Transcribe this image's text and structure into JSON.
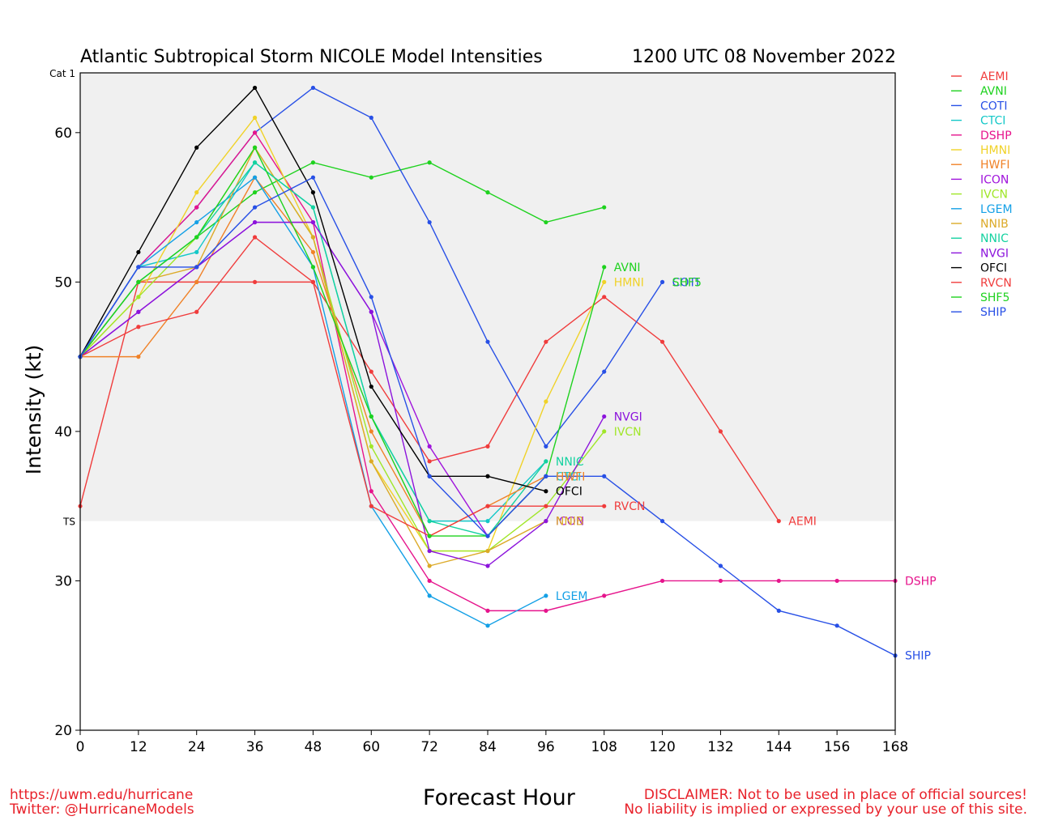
{
  "header": {
    "title": "Atlantic Subtropical Storm NICOLE Model Intensities",
    "timestamp": "1200 UTC 08 November 2022"
  },
  "footer": {
    "url": "https://uwm.edu/hurricane",
    "twitter": "Twitter: @HurricaneModels",
    "disclaimer1": "DISCLAIMER: Not to be used in place of official sources!",
    "disclaimer2": "No liability is implied or expressed by your use of this site."
  },
  "chart_data": {
    "type": "line",
    "title": "Atlantic Subtropical Storm NICOLE Model Intensities",
    "xlabel": "Forecast Hour",
    "ylabel": "Intensity (kt)",
    "xlim": [
      0,
      168
    ],
    "ylim": [
      20,
      64
    ],
    "xticks": [
      0,
      12,
      24,
      36,
      48,
      60,
      72,
      84,
      96,
      108,
      120,
      132,
      144,
      156,
      168
    ],
    "yticks": [
      20,
      30,
      40,
      50,
      60
    ],
    "bands": [
      {
        "label": "TS",
        "from": 34,
        "to": 64,
        "color": "#f0f0f0"
      },
      {
        "label": "Cat 1",
        "from": 64,
        "to": 68,
        "color": "#dcdcdc"
      }
    ],
    "series": [
      {
        "name": "AEMI",
        "color": "#f03c3c",
        "x": [
          0,
          12,
          24,
          36,
          48,
          60,
          72,
          84,
          96,
          108,
          120,
          132,
          144
        ],
        "values": [
          35,
          50,
          50,
          50,
          50,
          44,
          38,
          39,
          46,
          49,
          46,
          40,
          34
        ]
      },
      {
        "name": "AVNI",
        "color": "#1ed21e",
        "x": [
          0,
          12,
          24,
          36,
          48,
          60,
          72,
          84,
          96,
          108
        ],
        "values": [
          45,
          50,
          53,
          56,
          58,
          57,
          58,
          56,
          54,
          55
        ]
      },
      {
        "name": "COTI",
        "color": "#2850e6",
        "x": [
          0,
          12,
          24,
          36,
          48,
          60,
          72,
          84,
          96,
          108,
          120
        ],
        "values": [
          45,
          51,
          55,
          60,
          63,
          61,
          54,
          46,
          39,
          44,
          50
        ]
      },
      {
        "name": "CTCI",
        "color": "#14c8c8",
        "x": [
          0,
          12,
          24,
          36,
          48,
          60,
          72,
          84,
          96
        ],
        "values": [
          45,
          51,
          52,
          58,
          55,
          41,
          34,
          34,
          38
        ]
      },
      {
        "name": "DSHP",
        "color": "#e6148c",
        "x": [
          0,
          12,
          24,
          36,
          48,
          60,
          72,
          84,
          96,
          108,
          120,
          132,
          144,
          156,
          168
        ],
        "values": [
          45,
          51,
          55,
          60,
          54,
          36,
          30,
          28,
          28,
          29,
          30,
          30,
          30,
          30,
          30
        ]
      },
      {
        "name": "HMNI",
        "color": "#f0d228",
        "x": [
          0,
          12,
          24,
          36,
          48,
          60,
          72,
          84,
          96,
          108
        ],
        "values": [
          45,
          49,
          56,
          61,
          53,
          38,
          32,
          32,
          42,
          50
        ]
      },
      {
        "name": "HWFI",
        "color": "#f08228",
        "x": [
          0,
          12,
          24,
          36,
          48,
          60,
          72,
          84,
          96
        ],
        "values": [
          45,
          45,
          50,
          57,
          52,
          40,
          33,
          35,
          37
        ]
      },
      {
        "name": "ICON",
        "color": "#a014dc",
        "x": [
          0,
          12,
          24,
          36,
          48,
          60,
          72,
          84,
          96
        ],
        "values": [
          45,
          48,
          51,
          54,
          54,
          48,
          39,
          33,
          37
        ]
      },
      {
        "name": "IVCN",
        "color": "#a0e628",
        "x": [
          0,
          12,
          24,
          36,
          48,
          60,
          72,
          84,
          96,
          108
        ],
        "values": [
          45,
          49,
          53,
          59,
          53,
          39,
          32,
          32,
          35,
          40
        ]
      },
      {
        "name": "LGEM",
        "color": "#14a0e6",
        "x": [
          0,
          12,
          24,
          36,
          48,
          60,
          72,
          84,
          96
        ],
        "values": [
          45,
          51,
          54,
          57,
          51,
          35,
          29,
          27,
          29
        ]
      },
      {
        "name": "NNIB",
        "color": "#dcaa28",
        "x": [
          0,
          12,
          24,
          36,
          48,
          60,
          72,
          84,
          96
        ],
        "values": [
          45,
          50,
          51,
          59,
          53,
          38,
          31,
          32,
          34
        ]
      },
      {
        "name": "NNIC",
        "color": "#14d2a0",
        "x": [
          0,
          12,
          24,
          36,
          48,
          60,
          72,
          84,
          96
        ],
        "values": [
          45,
          50,
          53,
          58,
          55,
          41,
          34,
          33,
          38
        ]
      },
      {
        "name": "NVGI",
        "color": "#8c14dc",
        "x": [
          0,
          12,
          24,
          36,
          48,
          60,
          72,
          84,
          96,
          108
        ],
        "values": [
          45,
          48,
          51,
          54,
          54,
          48,
          32,
          31,
          34,
          41
        ]
      },
      {
        "name": "OFCI",
        "color": "#000000",
        "x": [
          0,
          12,
          24,
          36,
          48,
          60,
          72,
          84,
          96
        ],
        "values": [
          45,
          52,
          59,
          63,
          56,
          43,
          37,
          37,
          36
        ]
      },
      {
        "name": "RVCN",
        "color": "#f03c3c",
        "x": [
          0,
          12,
          24,
          36,
          48,
          60,
          72,
          84,
          96,
          108
        ],
        "values": [
          45,
          47,
          48,
          53,
          50,
          35,
          33,
          35,
          35,
          35
        ]
      },
      {
        "name": "SHF5",
        "color": "#1ed21e",
        "x": [
          0,
          12,
          24,
          36,
          48,
          60,
          72,
          84,
          96,
          108
        ],
        "values": [
          45,
          50,
          53,
          59,
          51,
          41,
          33,
          33,
          37,
          51
        ]
      },
      {
        "name": "SHIP",
        "color": "#2850e6",
        "x": [
          0,
          12,
          24,
          36,
          48,
          60,
          72,
          84,
          96,
          108,
          120,
          132,
          144,
          156,
          168
        ],
        "values": [
          45,
          51,
          51,
          55,
          57,
          49,
          37,
          33,
          37,
          37,
          34,
          31,
          28,
          27,
          25
        ]
      }
    ],
    "end_labels": [
      {
        "series": "AEMI",
        "x": 144,
        "y": 34
      },
      {
        "series": "AVNI",
        "x": 108,
        "y": 51
      },
      {
        "series": "COTI",
        "x": 120,
        "y": 50
      },
      {
        "series": "CTCI",
        "x": 96,
        "y": 37
      },
      {
        "series": "DSHP",
        "x": 168,
        "y": 30
      },
      {
        "series": "HMNI",
        "x": 108,
        "y": 50
      },
      {
        "series": "HWFI",
        "x": 96,
        "y": 37
      },
      {
        "series": "ICON",
        "x": 96,
        "y": 34
      },
      {
        "series": "IVCN",
        "x": 108,
        "y": 40
      },
      {
        "series": "LGEM",
        "x": 96,
        "y": 29
      },
      {
        "series": "NNIB",
        "x": 96,
        "y": 34
      },
      {
        "series": "NNIC",
        "x": 96,
        "y": 38
      },
      {
        "series": "NVGI",
        "x": 108,
        "y": 41
      },
      {
        "series": "OFCI",
        "x": 96,
        "y": 36
      },
      {
        "series": "RVCN",
        "x": 108,
        "y": 35
      },
      {
        "series": "SHF5",
        "x": 120,
        "y": 50
      },
      {
        "series": "SHIP",
        "x": 168,
        "y": 25
      }
    ]
  }
}
